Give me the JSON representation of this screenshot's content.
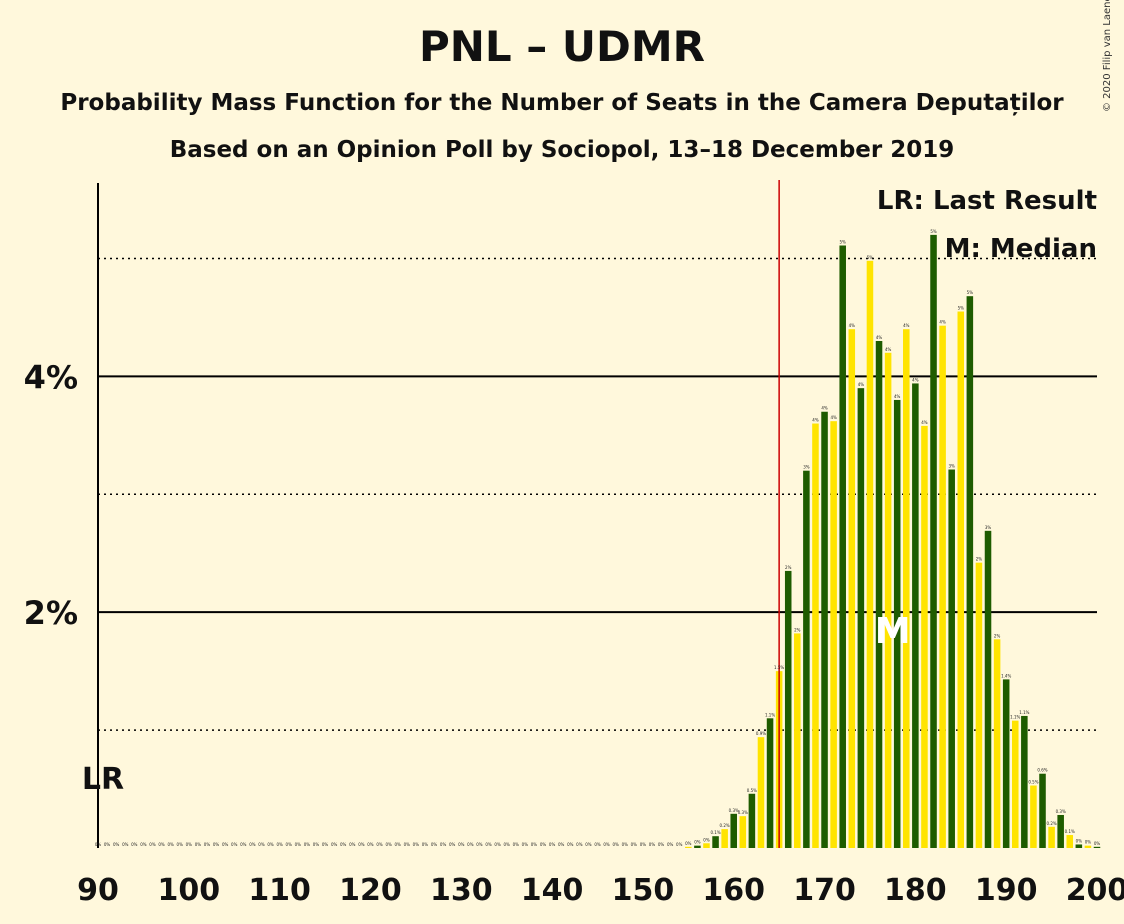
{
  "chart_data": {
    "type": "bar",
    "title": "PNL – UDMR",
    "subtitle": "Probability Mass Function for the Number of Seats in the Camera Deputaților",
    "subtitle2": "Based on an Opinion Poll by Sociopol, 13–18 December 2019",
    "copyright": "© 2020 Filip van Laenen",
    "xlim": [
      90,
      200
    ],
    "ylim": [
      0,
      5.64
    ],
    "x_ticks": [
      90,
      100,
      110,
      120,
      130,
      140,
      150,
      160,
      170,
      180,
      190,
      200
    ],
    "y_major_ticks": [
      2,
      4
    ],
    "y_major_labels": [
      "2%",
      "4%"
    ],
    "y_minor_ticks": [
      1,
      3,
      5
    ],
    "last_result": 165,
    "last_result_label": "LR",
    "median": 177,
    "median_label": "M",
    "legend": [
      "LR: Last Result",
      "M: Median"
    ],
    "colors": {
      "dark": "#1E5C00",
      "light": "#FFE400",
      "last_result_line": "#CC0000",
      "background": "#FFF8DC"
    },
    "x": [
      90,
      91,
      92,
      93,
      94,
      95,
      96,
      97,
      98,
      99,
      100,
      101,
      102,
      103,
      104,
      105,
      106,
      107,
      108,
      109,
      110,
      111,
      112,
      113,
      114,
      115,
      116,
      117,
      118,
      119,
      120,
      121,
      122,
      123,
      124,
      125,
      126,
      127,
      128,
      129,
      130,
      131,
      132,
      133,
      134,
      135,
      136,
      137,
      138,
      139,
      140,
      141,
      142,
      143,
      144,
      145,
      146,
      147,
      148,
      149,
      150,
      151,
      152,
      153,
      154,
      155,
      156,
      157,
      158,
      159,
      160,
      161,
      162,
      163,
      164,
      165,
      166,
      167,
      168,
      169,
      170,
      171,
      172,
      173,
      174,
      175,
      176,
      177,
      178,
      179,
      180,
      181,
      182,
      183,
      184,
      185,
      186,
      187,
      188,
      189,
      190,
      191,
      192,
      193,
      194,
      195,
      196,
      197,
      198,
      199,
      200
    ],
    "values": [
      0,
      0,
      0,
      0,
      0,
      0,
      0,
      0,
      0,
      0,
      0,
      0,
      0,
      0,
      0,
      0,
      0,
      0,
      0,
      0,
      0,
      0,
      0,
      0,
      0,
      0,
      0,
      0,
      0,
      0,
      0,
      0,
      0,
      0,
      0,
      0,
      0,
      0,
      0,
      0,
      0,
      0,
      0,
      0,
      0,
      0,
      0,
      0,
      0,
      0,
      0,
      0,
      0,
      0,
      0,
      0,
      0,
      0,
      0,
      0,
      0,
      0,
      0,
      0,
      0,
      0.01,
      0.02,
      0.04,
      0.1,
      0.16,
      0.29,
      0.27,
      0.46,
      0.94,
      1.1,
      1.5,
      2.35,
      1.82,
      3.2,
      3.6,
      3.7,
      3.62,
      5.11,
      4.4,
      3.9,
      4.98,
      4.3,
      4.2,
      3.8,
      4.4,
      3.94,
      3.58,
      5.2,
      4.43,
      3.21,
      4.55,
      4.68,
      2.42,
      2.69,
      1.77,
      1.43,
      1.08,
      1.12,
      0.53,
      0.63,
      0.18,
      0.28,
      0.11,
      0.03,
      0.02,
      0.01
    ],
    "value_labels": [
      "0%",
      "0%",
      "0%",
      "0%",
      "0%",
      "0%",
      "0%",
      "0%",
      "0%",
      "0%",
      "0%",
      "0%",
      "0%",
      "0%",
      "0%",
      "0%",
      "0%",
      "0%",
      "0%",
      "0%",
      "0%",
      "0%",
      "0%",
      "0%",
      "0%",
      "0%",
      "0%",
      "0%",
      "0%",
      "0%",
      "0%",
      "0%",
      "0%",
      "0%",
      "0%",
      "0%",
      "0%",
      "0%",
      "0%",
      "0%",
      "0%",
      "0%",
      "0%",
      "0%",
      "0%",
      "0%",
      "0%",
      "0%",
      "0%",
      "0%",
      "0%",
      "0%",
      "0%",
      "0%",
      "0%",
      "0%",
      "0%",
      "0%",
      "0%",
      "0%",
      "0%",
      "0%",
      "0%",
      "0%",
      "0%",
      "0%",
      "0%",
      "0%",
      "0.1%",
      "0.2%",
      "0.3%",
      "0.3%",
      "0.5%",
      "0.9%",
      "1.1%",
      "1.5%",
      "2%",
      "2%",
      "3%",
      "4%",
      "4%",
      "4%",
      "5%",
      "4%",
      "4%",
      "5%",
      "4%",
      "4%",
      "4%",
      "4%",
      "4%",
      "4%",
      "5%",
      "4%",
      "3%",
      "5%",
      "5%",
      "2%",
      "3%",
      "2%",
      "1.4%",
      "1.1%",
      "1.1%",
      "0.5%",
      "0.6%",
      "0.2%",
      "0.3%",
      "0.1%",
      "0%",
      "0%",
      "0%"
    ]
  }
}
